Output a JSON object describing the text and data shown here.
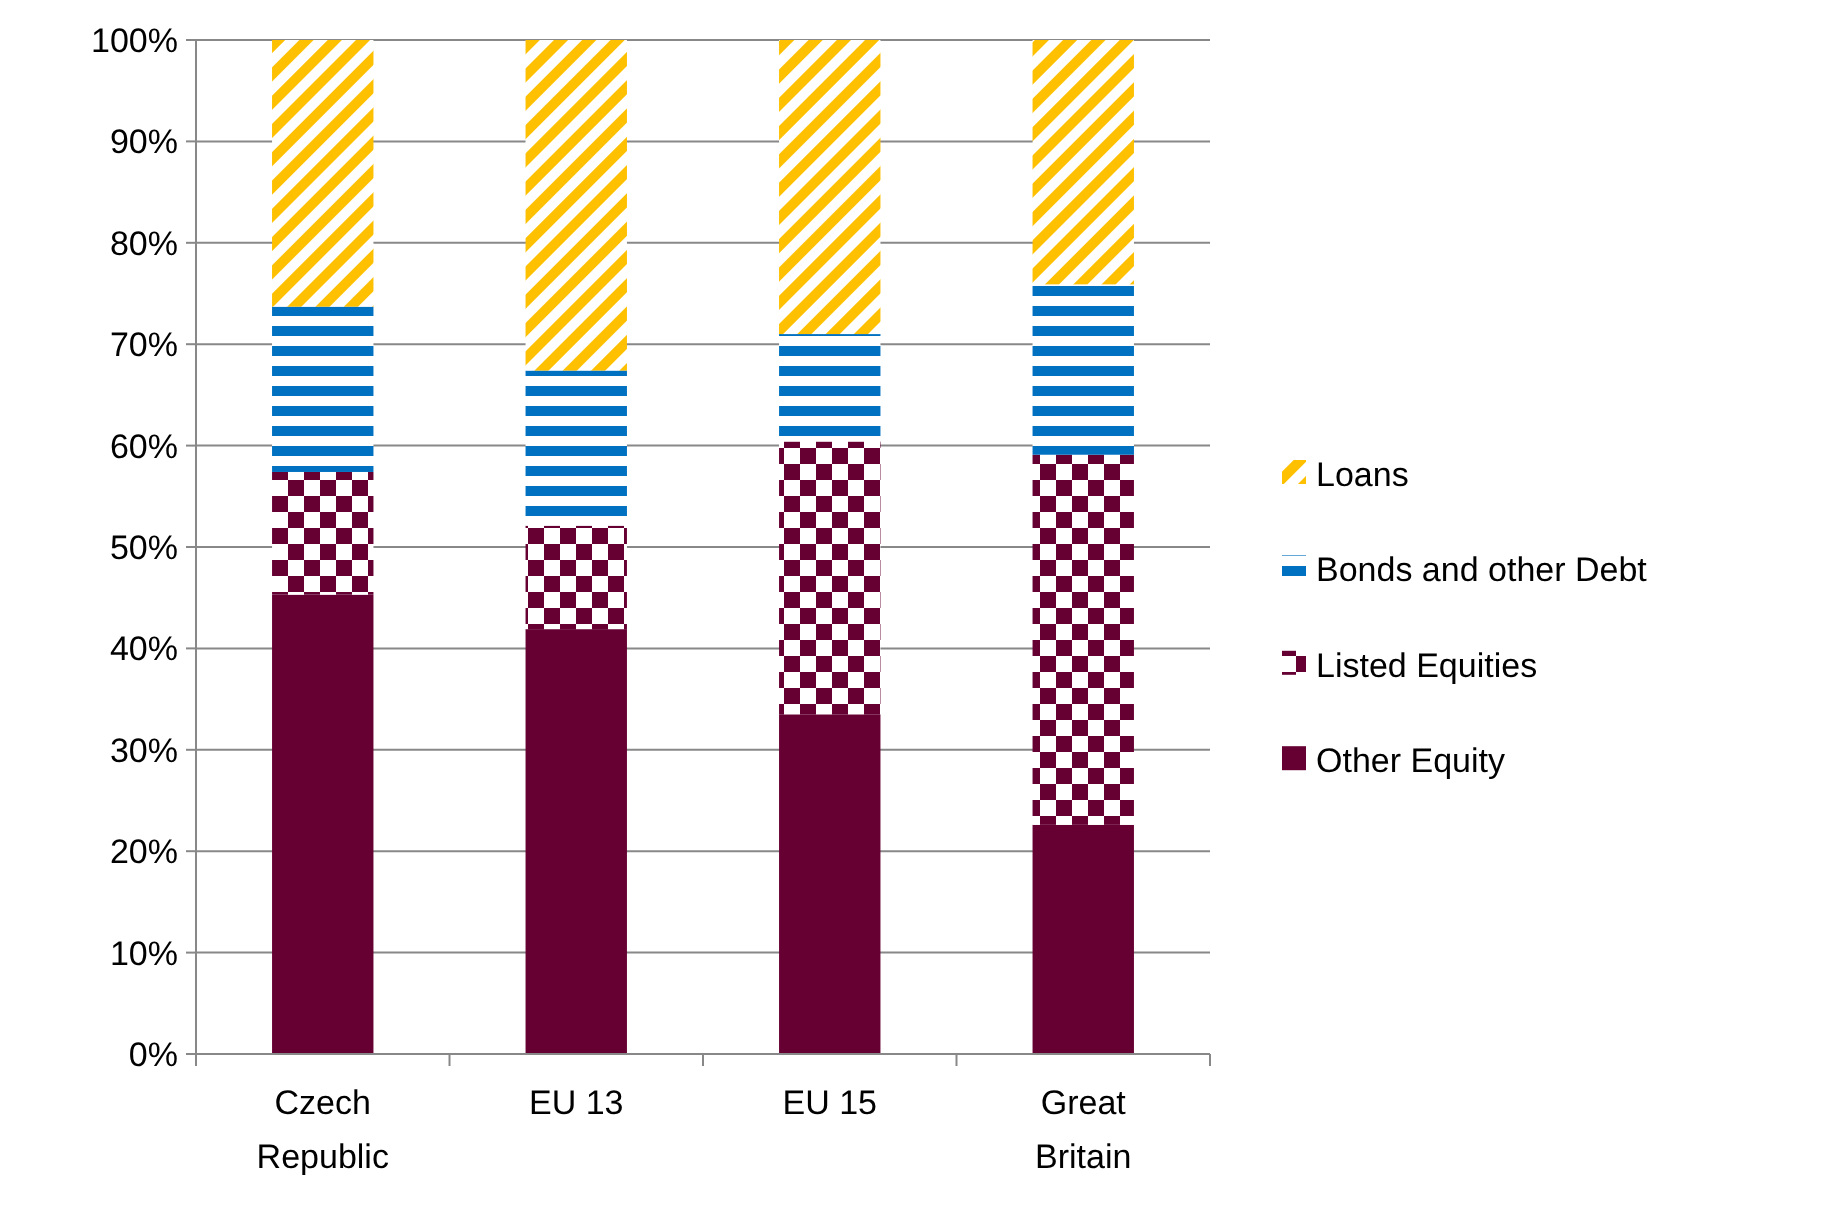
{
  "chart_data": {
    "type": "bar",
    "stacked": true,
    "categories": [
      "Czech Republic",
      "EU 13",
      "EU 15",
      "Great Britain"
    ],
    "series": [
      {
        "name": "Other Equity",
        "color": "#660033",
        "values": [
          45.3,
          41.9,
          33.5,
          22.6
        ]
      },
      {
        "name": "Listed Equities",
        "color": "#660033",
        "values": [
          12.1,
          10.2,
          26.9,
          36.5
        ]
      },
      {
        "name": "Bonds and other Debt",
        "color": "#0070c0",
        "values": [
          16.3,
          15.3,
          10.6,
          16.8
        ]
      },
      {
        "name": "Loans",
        "color": "#ffc000",
        "values": [
          26.3,
          32.6,
          29.0,
          24.1
        ]
      }
    ],
    "ylim": [
      0,
      100
    ],
    "yticks": [
      {
        "value": 0,
        "label": "0%"
      },
      {
        "value": 10,
        "label": "10%"
      },
      {
        "value": 20,
        "label": "20%"
      },
      {
        "value": 30,
        "label": "30%"
      },
      {
        "value": 40,
        "label": "40%"
      },
      {
        "value": 50,
        "label": "50%"
      },
      {
        "value": 60,
        "label": "60%"
      },
      {
        "value": 70,
        "label": "70%"
      },
      {
        "value": 80,
        "label": "80%"
      },
      {
        "value": 90,
        "label": "90%"
      },
      {
        "value": 100,
        "label": "100%"
      }
    ],
    "grid": "y",
    "legend": "right"
  }
}
